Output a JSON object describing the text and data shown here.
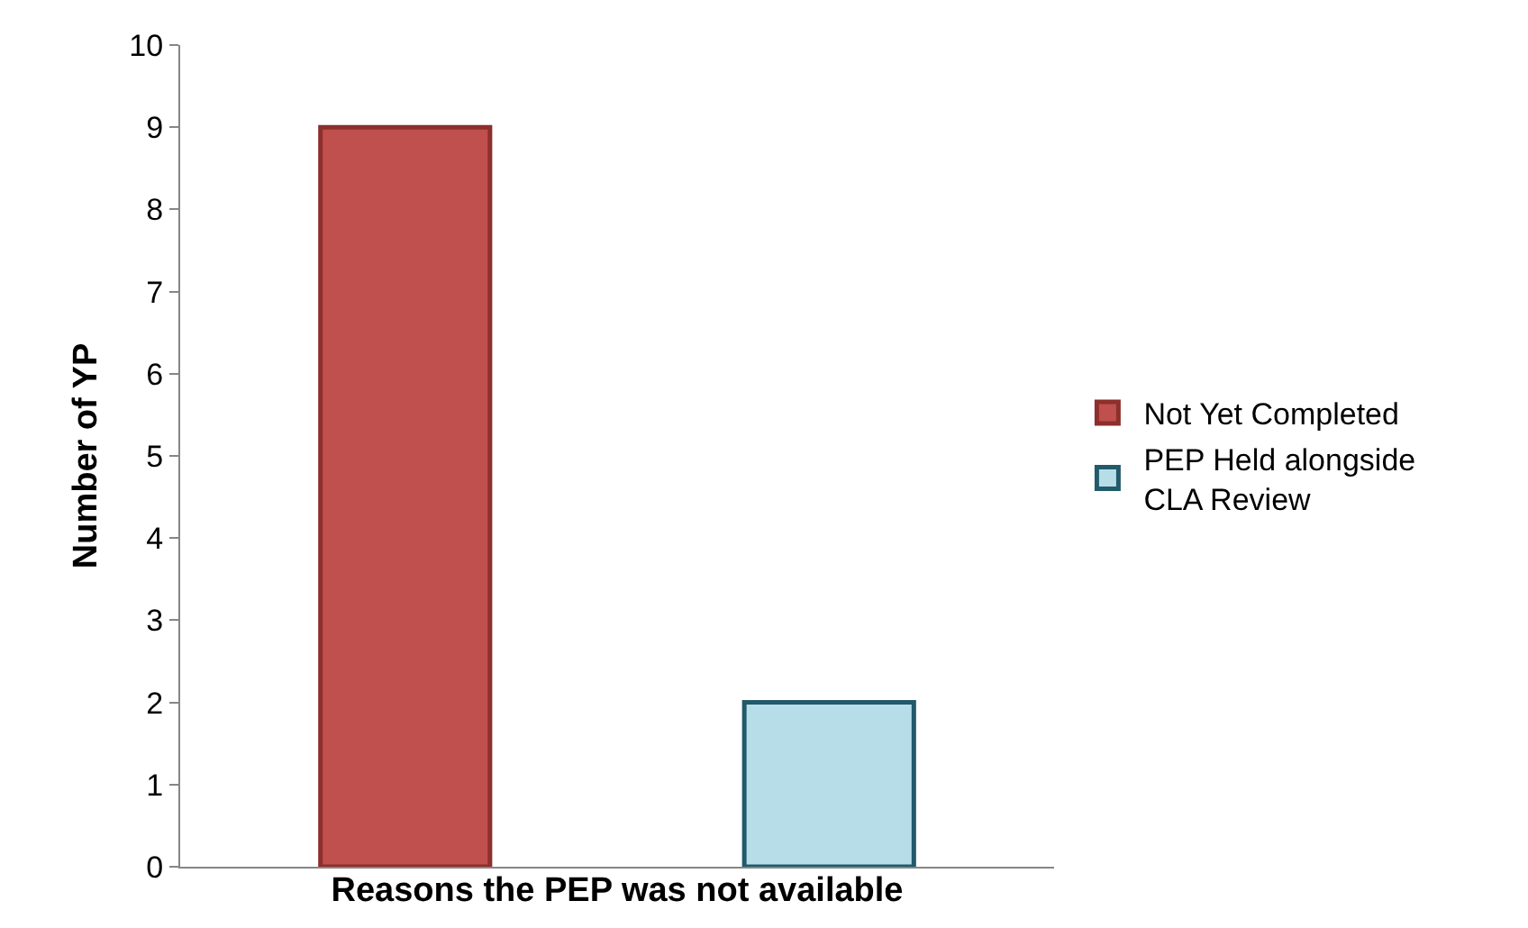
{
  "chart_data": {
    "type": "bar",
    "xlabel": "Reasons the PEP was not available",
    "ylabel": "Number of YP",
    "categories": [
      null
    ],
    "series": [
      {
        "name": "Not Yet Completed",
        "color": "#c0504d",
        "values": [
          9
        ]
      },
      {
        "name": "PEP Held alongside CLA Review",
        "color": "#b7dee8",
        "values": [
          2
        ]
      }
    ],
    "ylim": [
      0,
      10
    ],
    "yticks": [
      0,
      1,
      2,
      3,
      4,
      5,
      6,
      7,
      8,
      9,
      10
    ],
    "grid": false,
    "legend": "right"
  }
}
